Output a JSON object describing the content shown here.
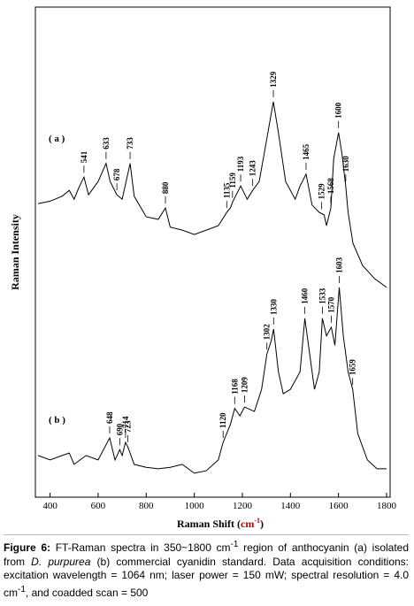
{
  "chart_data": {
    "type": "line",
    "x_label": {
      "text": "Raman Shift (",
      "unit": "cm",
      "unit_sup": "-1",
      "close": ")"
    },
    "y_label": "Raman Intensity",
    "xlim": [
      350,
      1800
    ],
    "xticks": [
      400,
      600,
      800,
      1000,
      1200,
      1400,
      1600,
      1800
    ],
    "ylim": [
      0,
      100
    ],
    "series": [
      {
        "name": "( a )",
        "color": "#000000",
        "x": [
          350,
          400,
          450,
          480,
          500,
          520,
          541,
          560,
          600,
          633,
          650,
          678,
          700,
          733,
          750,
          800,
          850,
          880,
          900,
          950,
          1000,
          1050,
          1100,
          1135,
          1150,
          1160,
          1193,
          1220,
          1243,
          1270,
          1300,
          1329,
          1350,
          1380,
          1420,
          1440,
          1465,
          1490,
          1520,
          1540,
          1550,
          1568,
          1580,
          1600,
          1615,
          1630,
          1640,
          1660,
          1700,
          1750,
          1800
        ],
        "values": [
          59.9,
          60.4,
          61.4,
          62.6,
          60.8,
          63.2,
          65.3,
          61.7,
          64.4,
          68.1,
          64.4,
          61.7,
          60.8,
          68.1,
          61.4,
          57.2,
          56.7,
          59.0,
          55.1,
          54.5,
          53.6,
          54.5,
          55.4,
          58.1,
          59.0,
          60.3,
          63.5,
          60.8,
          62.6,
          64.4,
          72.6,
          80.7,
          74.4,
          64.4,
          60.8,
          63.5,
          65.9,
          59.6,
          58.1,
          57.6,
          55.4,
          59.0,
          69.0,
          74.4,
          69.9,
          63.5,
          58.1,
          51.8,
          47.3,
          44.6,
          42.8
        ],
        "peaks": [
          541,
          633,
          678,
          733,
          880,
          1135,
          1159,
          1193,
          1243,
          1329,
          1465,
          1529,
          1568,
          1600,
          1630
        ]
      },
      {
        "name": "( b )",
        "color": "#000000",
        "x": [
          350,
          400,
          450,
          480,
          500,
          550,
          600,
          648,
          670,
          690,
          700,
          714,
          723,
          750,
          800,
          850,
          900,
          950,
          1000,
          1050,
          1100,
          1120,
          1150,
          1168,
          1190,
          1209,
          1250,
          1280,
          1302,
          1320,
          1330,
          1350,
          1370,
          1400,
          1440,
          1460,
          1475,
          1500,
          1520,
          1533,
          1550,
          1570,
          1585,
          1603,
          1620,
          1640,
          1659,
          1680,
          1720,
          1760,
          1800
        ],
        "values": [
          8.5,
          7.6,
          8.5,
          9.0,
          6.7,
          8.5,
          7.6,
          12.1,
          7.6,
          9.7,
          8.5,
          11.2,
          10.3,
          6.7,
          6.1,
          5.8,
          6.1,
          6.7,
          4.9,
          5.4,
          7.6,
          11.2,
          14.8,
          18.1,
          16.6,
          18.4,
          17.5,
          22.0,
          29.2,
          31.9,
          34.3,
          25.6,
          21.1,
          22.0,
          25.6,
          36.5,
          31.0,
          22.0,
          25.6,
          36.5,
          32.9,
          34.7,
          31.0,
          42.8,
          32.9,
          25.6,
          22.0,
          13.0,
          7.6,
          5.8,
          5.8
        ],
        "peaks": [
          648,
          690,
          714,
          723,
          1120,
          1168,
          1209,
          1302,
          1330,
          1460,
          1533,
          1570,
          1603,
          1659
        ]
      }
    ],
    "caption": [
      "Figure 6:",
      " FT-Raman spectra in 350~1800 cm",
      "-1",
      " region of anthocyanin (a) isolated from ",
      "D. purpurea",
      " (b) commercial cyanidin standard. Data acquisition conditions: excitation wavelength = 1064 nm; laser power = 150 mW; spectral resolution = 4.0 cm",
      "-1",
      ", and coadded scan = 500"
    ]
  }
}
